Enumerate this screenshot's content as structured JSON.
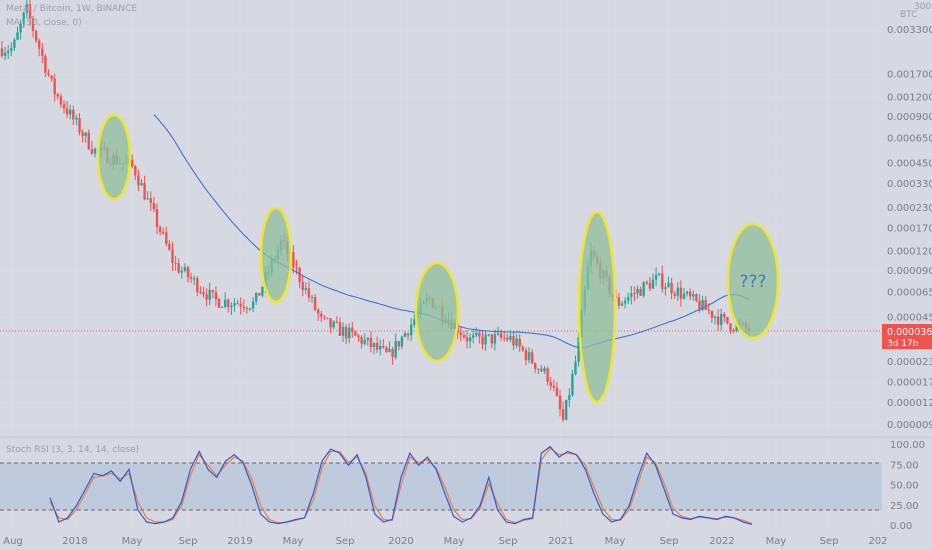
{
  "header": {
    "title": "Metal / Bitcoin, 1W, BINANCE",
    "ma_label": "MA (50, close, 0)",
    "stoch_label": "Stoch RSI (3, 3, 14, 14, close)",
    "currency": "BTC",
    "currency_top": "300"
  },
  "price_tag": {
    "value": "0.00003663",
    "countdown": "3d 17h"
  },
  "annotation": "???",
  "colors": {
    "up": "#26a69a",
    "down": "#ef5350",
    "ma": "#3c78d8",
    "stoch_k": "#2f5bd8",
    "stoch_d": "#f07b3f",
    "highlight_fill": "#8fbf9a",
    "highlight_stroke": "#f0e62e",
    "price_line": "#ef5350",
    "band": "#b4c6dc"
  },
  "chart_data": [
    {
      "type": "candlestick",
      "title": "Metal / Bitcoin, 1W, BINANCE",
      "y_scale": "log",
      "y_ticks": [
        "0.00330000",
        "0.00170000",
        "0.00120000",
        "0.00090000",
        "0.00065000",
        "0.00045000",
        "0.00033000",
        "0.00023000",
        "0.00017000",
        "0.00012000",
        "0.00009000",
        "0.00006500",
        "0.00004500",
        "0.00002300",
        "0.00001700",
        "0.00001250",
        "0.00000900"
      ],
      "x_ticks": [
        "Aug",
        "2018",
        "May",
        "Sep",
        "2019",
        "May",
        "Sep",
        "2020",
        "May",
        "Sep",
        "2021",
        "May",
        "Sep",
        "2022",
        "May",
        "Sep",
        "202"
      ],
      "last_price": 3.663e-05,
      "ma_series": {
        "name": "MA (50, close, 0)"
      },
      "approx_path": {
        "dates": [
          "2017-08",
          "2017-09",
          "2017-11",
          "2018-02",
          "2018-05",
          "2018-08",
          "2018-11",
          "2019-02",
          "2019-04",
          "2019-07",
          "2019-10",
          "2019-12",
          "2020-03",
          "2020-06",
          "2020-09",
          "2020-12",
          "2021-01",
          "2021-02",
          "2021-03",
          "2021-05",
          "2021-08",
          "2021-11",
          "2022-01",
          "2022-03"
        ],
        "close": [
          0.0025,
          0.0045,
          0.00135,
          0.00055,
          0.00042,
          0.0001,
          5.8e-05,
          5.5e-05,
          0.00014,
          4.2e-05,
          3.2e-05,
          2.5e-05,
          6e-05,
          3.2e-05,
          3.3e-05,
          1.8e-05,
          9.5e-06,
          2.5e-05,
          0.00012,
          5.5e-05,
          8e-05,
          5.5e-05,
          4.2e-05,
          3.7e-05
        ]
      },
      "highlights": [
        "2018-04",
        "2019-03",
        "2020-03",
        "2021-03",
        "2022-03"
      ]
    },
    {
      "type": "line",
      "title": "Stoch RSI (3, 3, 14, 14, close)",
      "y_ticks": [
        "100.00",
        "75.00",
        "50.00",
        "25.00",
        "0.00"
      ],
      "ylim": [
        0,
        100
      ],
      "bands": [
        20,
        80
      ],
      "series": [
        {
          "name": "K",
          "values": [
            35,
            5,
            10,
            25,
            45,
            65,
            62,
            68,
            55,
            70,
            20,
            5,
            3,
            5,
            10,
            30,
            70,
            92,
            70,
            60,
            80,
            88,
            78,
            50,
            15,
            5,
            3,
            5,
            8,
            10,
            40,
            80,
            95,
            90,
            75,
            88,
            60,
            15,
            5,
            8,
            60,
            90,
            75,
            85,
            70,
            40,
            12,
            5,
            10,
            25,
            60,
            20,
            5,
            3,
            8,
            10,
            90,
            98,
            85,
            92,
            88,
            70,
            40,
            15,
            5,
            8,
            25,
            60,
            90,
            75,
            45,
            15,
            10,
            8,
            12,
            10,
            8,
            12,
            10,
            5,
            2
          ]
        },
        {
          "name": "D",
          "values": [
            30,
            10,
            8,
            20,
            40,
            60,
            62,
            65,
            58,
            65,
            30,
            10,
            5,
            5,
            8,
            25,
            62,
            88,
            75,
            62,
            75,
            85,
            80,
            58,
            25,
            8,
            4,
            5,
            7,
            10,
            32,
            72,
            92,
            92,
            78,
            85,
            65,
            25,
            8,
            7,
            50,
            85,
            78,
            82,
            72,
            48,
            20,
            8,
            9,
            22,
            52,
            28,
            8,
            4,
            7,
            9,
            82,
            96,
            88,
            90,
            88,
            75,
            48,
            22,
            8,
            7,
            20,
            52,
            85,
            78,
            52,
            22,
            12,
            9,
            11,
            10,
            9,
            11,
            10,
            7,
            3
          ]
        }
      ]
    }
  ]
}
